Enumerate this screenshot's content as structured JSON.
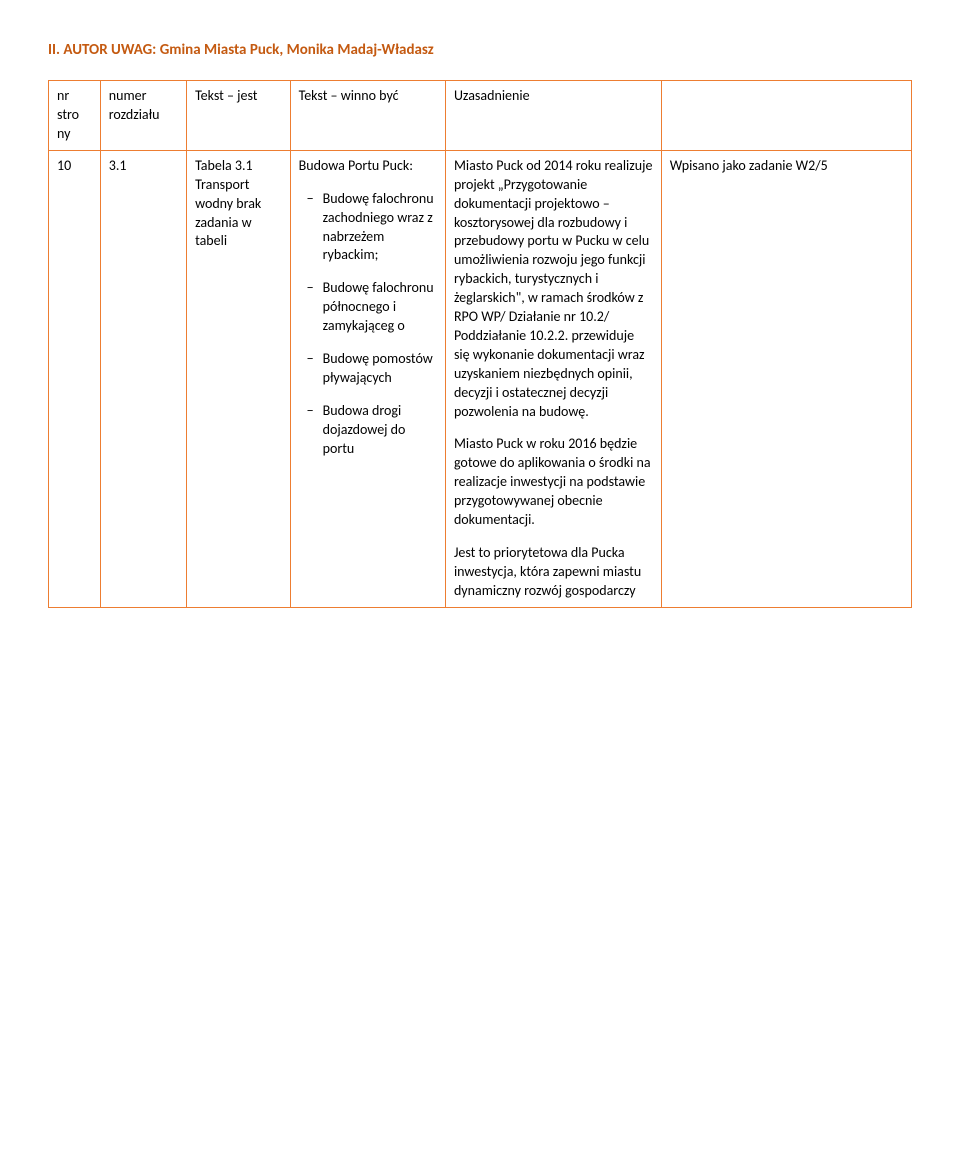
{
  "colors": {
    "heading": "#c45a11",
    "border": "#ed7d31",
    "text": "#000000",
    "background": "#ffffff"
  },
  "heading": "II. AUTOR UWAG: Gmina Miasta Puck, Monika Madaj-Władasz",
  "headers": {
    "c1": "nr stro ny",
    "c2": "numer rozdziału",
    "c3": "Tekst – jest",
    "c4": "Tekst – winno być",
    "c5": "Uzasadnienie",
    "c6": ""
  },
  "row": {
    "c1": "10",
    "c2": "3.1",
    "c3": "Tabela 3.1 Transport wodny brak zadania w tabeli",
    "c4_lead": "Budowa Portu Puck:",
    "c4_items": [
      "Budowę falochronu zachodniego wraz z nabrzeżem rybackim;",
      "Budowę falochronu północnego i zamykająceg o",
      "Budowę pomostów pływających",
      "Budowa drogi dojazdowej do portu"
    ],
    "c5_p1": "Miasto Puck od 2014 roku realizuje projekt „Przygotowanie dokumentacji projektowo – kosztorysowej  dla rozbudowy i przebudowy portu w Pucku w celu umożliwienia rozwoju jego funkcji rybackich, turystycznych i żeglarskich\", w ramach środków z RPO WP/ Działanie nr 10.2/ Poddziałanie 10.2.2. przewiduje się wykonanie dokumentacji wraz uzyskaniem niezbędnych opinii, decyzji i ostatecznej decyzji pozwolenia na budowę.",
    "c5_p2": "Miasto Puck w roku 2016 będzie gotowe do aplikowania o  środki na realizacje inwestycji na podstawie przygotowywanej obecnie dokumentacji.",
    "c5_p3": "Jest to priorytetowa dla Pucka inwestycja, która zapewni miastu dynamiczny rozwój gospodarczy",
    "c6": "Wpisano jako zadanie W2/5"
  }
}
